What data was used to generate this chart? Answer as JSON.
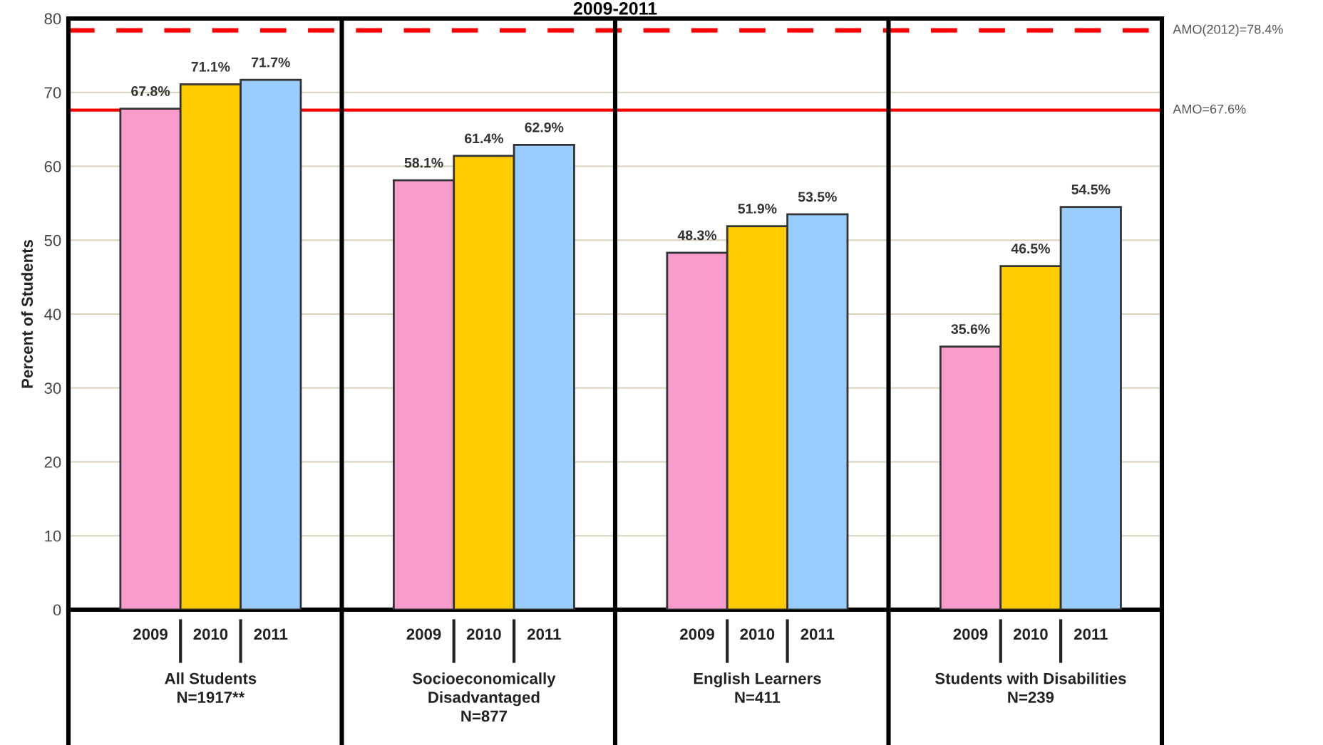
{
  "chart_data": {
    "type": "bar",
    "title": "2009-2011",
    "ylabel": "Percent of Students",
    "categories": [
      "All Students\nN=1917**",
      "Socioeconomically\nDisadvantaged\nN=877",
      "English Learners\nN=411",
      "Students with Disabilities\nN=239"
    ],
    "series": [
      {
        "name": "2009",
        "color": "#f99bcb",
        "values": [
          67.8,
          58.1,
          48.3,
          35.6
        ],
        "value_labels": [
          "67.8%",
          "58.1%",
          "48.3%",
          "35.6%"
        ]
      },
      {
        "name": "2010",
        "color": "#ffcc00",
        "values": [
          71.1,
          61.4,
          51.9,
          46.5
        ],
        "value_labels": [
          "71.1%",
          "61.4%",
          "51.9%",
          "46.5%"
        ]
      },
      {
        "name": "2011",
        "color": "#99ccff",
        "values": [
          71.7,
          62.9,
          53.5,
          54.5
        ],
        "value_labels": [
          "71.7%",
          "62.9%",
          "53.5%",
          "54.5%"
        ]
      }
    ],
    "ylim": [
      0,
      80
    ],
    "yticks": [
      0,
      10,
      20,
      30,
      40,
      50,
      60,
      70,
      80
    ],
    "grid": "y",
    "ref_lines": [
      {
        "axis": "y",
        "value": 78.4,
        "label": "AMO(2012)=78.4%",
        "color": "#ff0000",
        "line_style": "dashed"
      },
      {
        "axis": "y",
        "value": 67.6,
        "label": "AMO=67.6%",
        "color": "#ff0000",
        "line_style": "solid"
      }
    ]
  }
}
